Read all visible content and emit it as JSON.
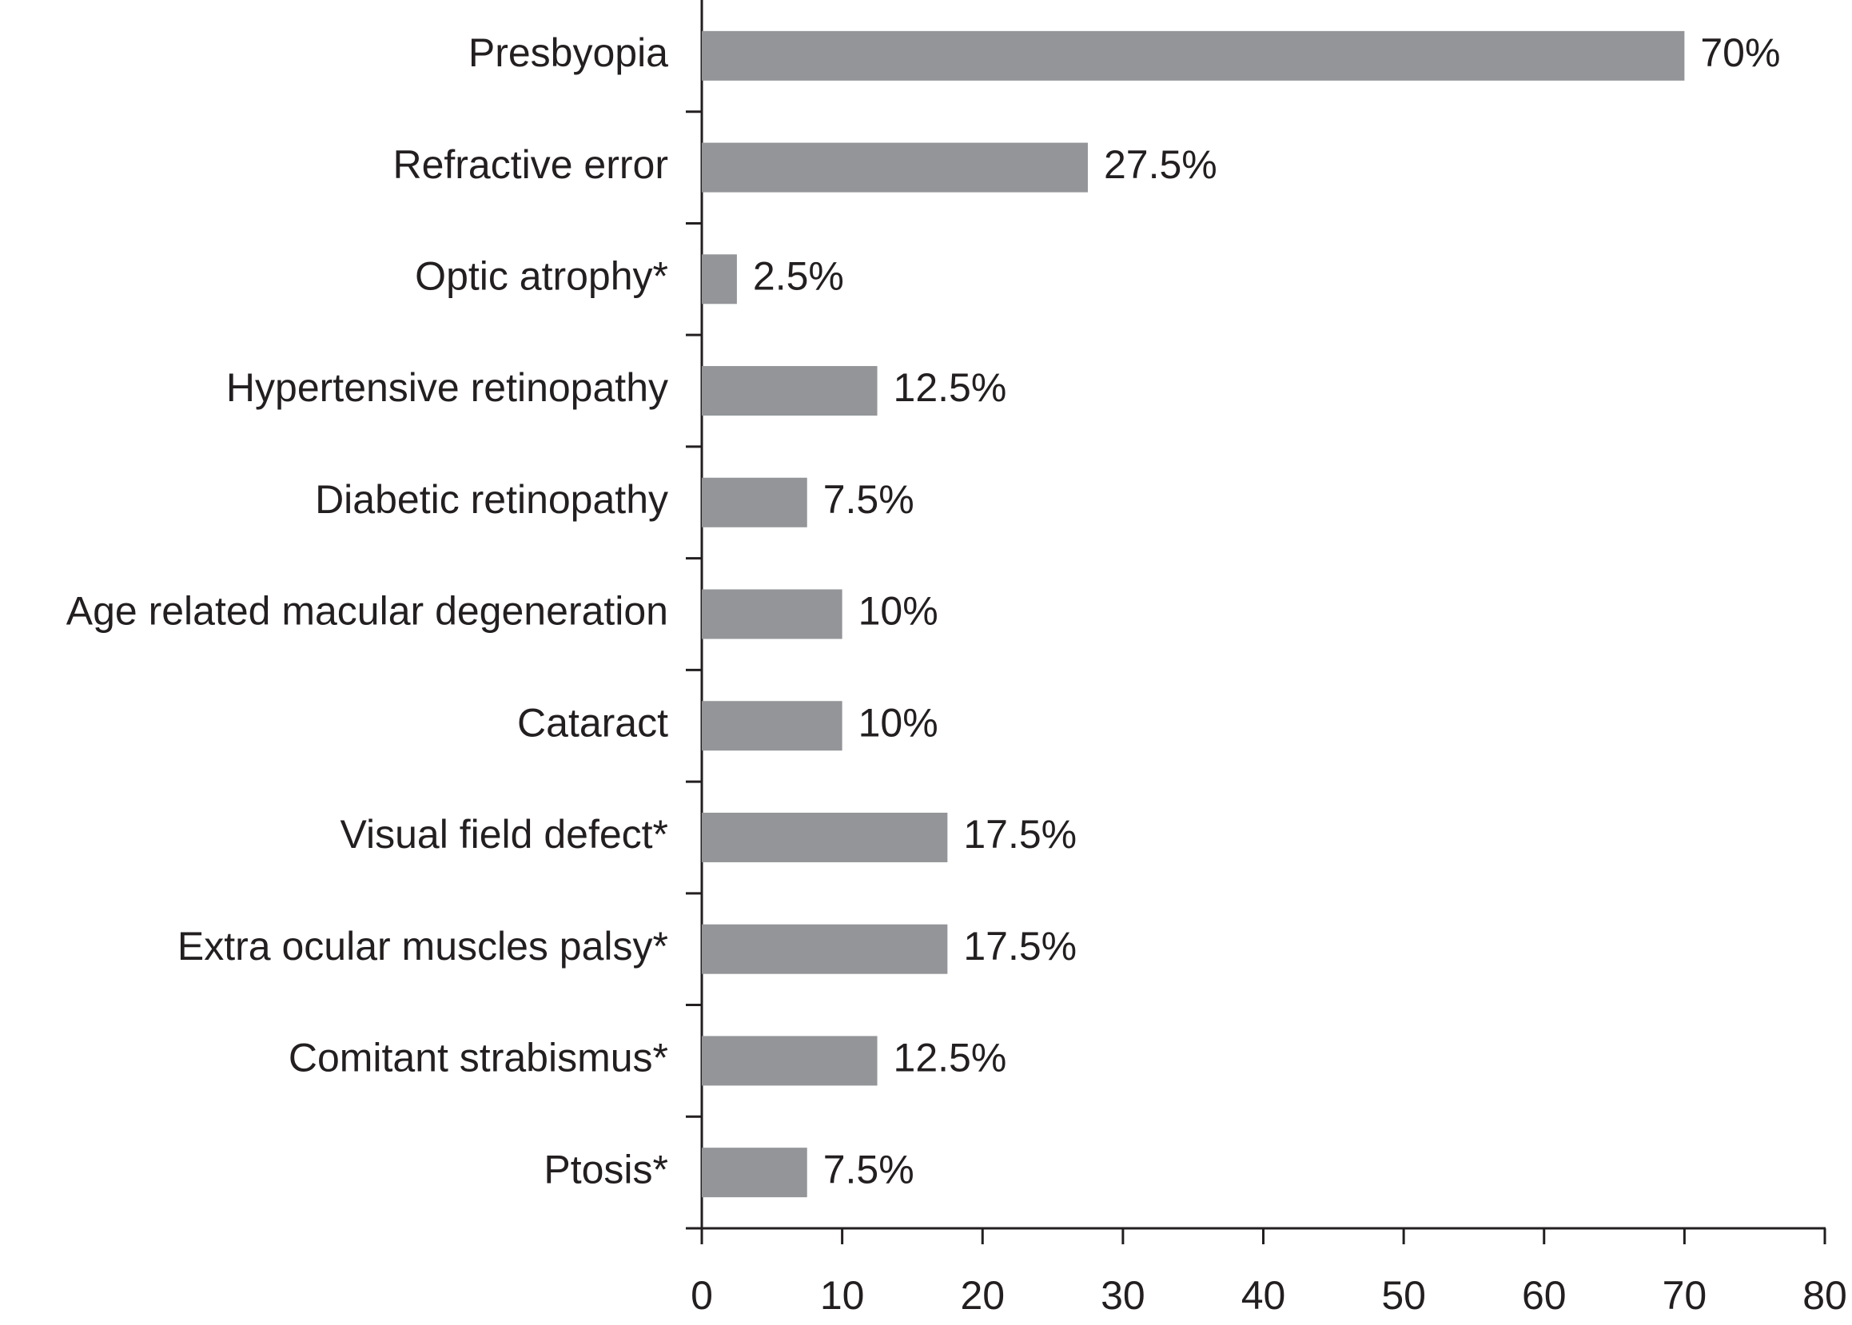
{
  "chart_data": {
    "type": "bar",
    "orientation": "horizontal",
    "categories": [
      "Presbyopia",
      "Refractive error",
      "Optic atrophy*",
      "Hypertensive retinopathy",
      "Diabetic retinopathy",
      "Age related macular degeneration",
      "Cataract",
      "Visual field defect*",
      "Extra ocular muscles palsy*",
      "Comitant strabismus*",
      "Ptosis*"
    ],
    "values": [
      70,
      27.5,
      2.5,
      12.5,
      7.5,
      10,
      10,
      17.5,
      17.5,
      12.5,
      7.5
    ],
    "value_labels": [
      "70%",
      "27.5%",
      "2.5%",
      "12.5%",
      "7.5%",
      "10%",
      "10%",
      "17.5%",
      "17.5%",
      "12.5%",
      "7.5%"
    ],
    "color": "#939598",
    "xlim": [
      0,
      80
    ],
    "xticks": [
      0,
      10,
      20,
      30,
      40,
      50,
      60,
      70,
      80
    ],
    "grid": false
  }
}
